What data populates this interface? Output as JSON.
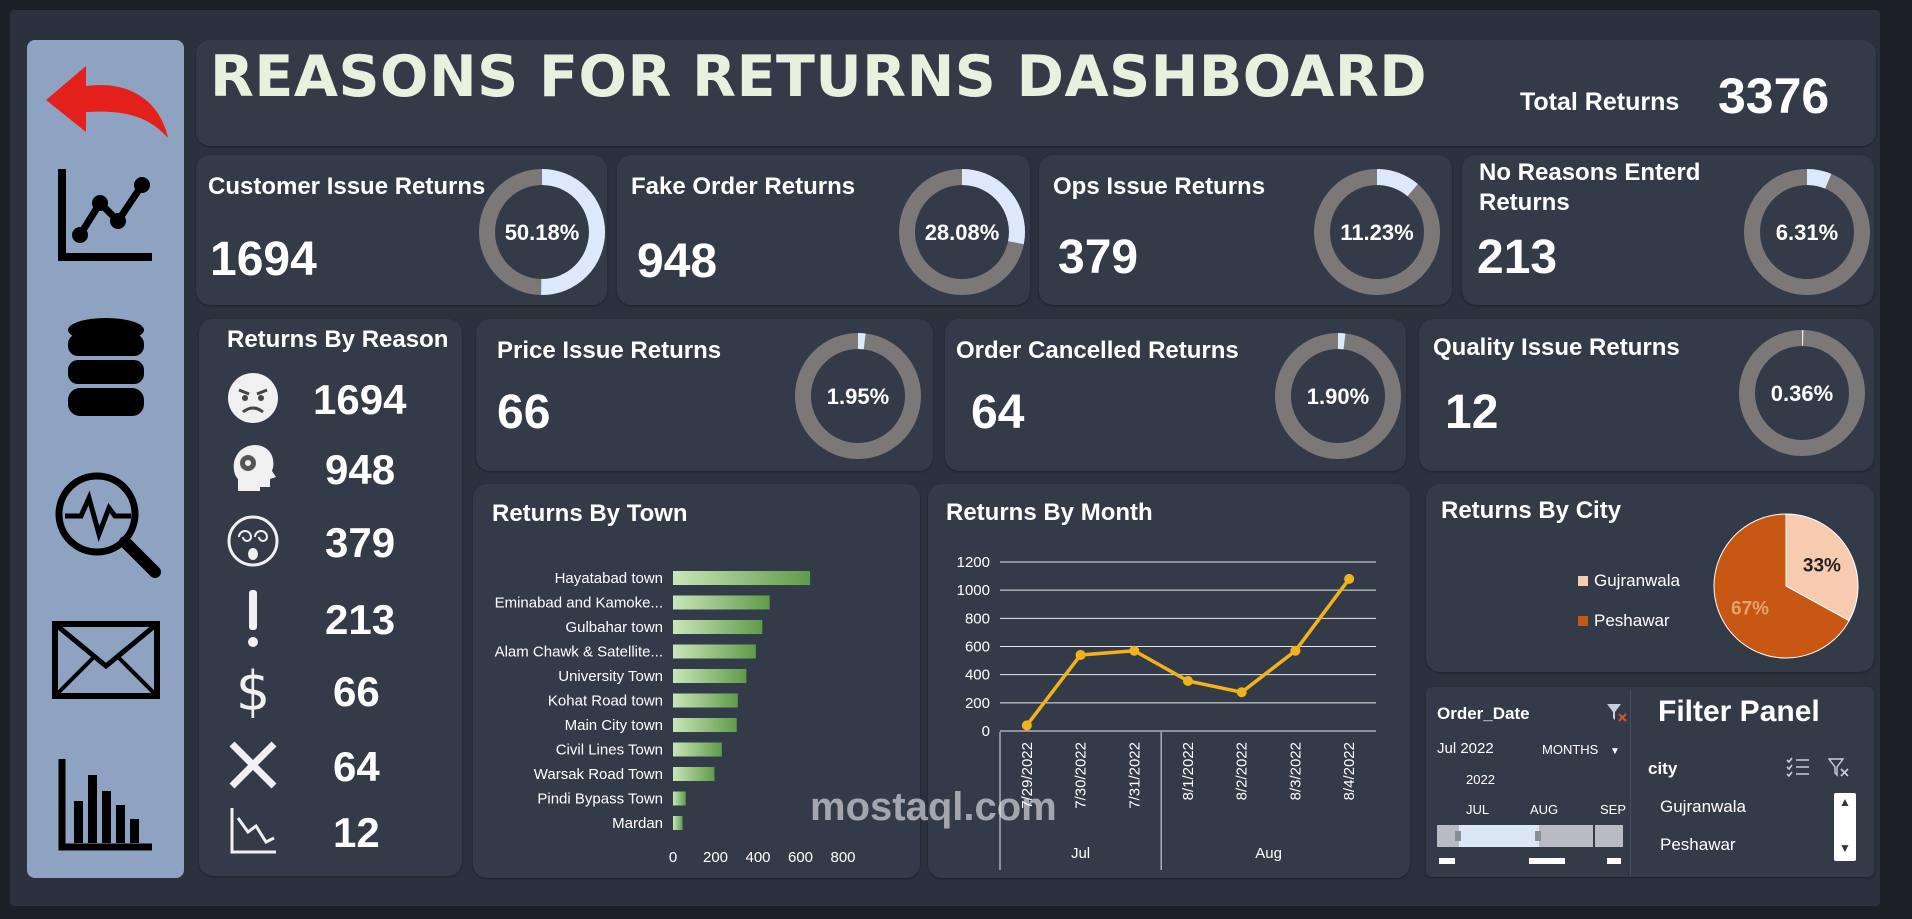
{
  "title": "REASONS FOR RETURNS DASHBOARD",
  "total": {
    "label": "Total Returns",
    "value": "3376"
  },
  "sidebar": {
    "icons": [
      "back-arrow-icon",
      "line-chart-icon",
      "database-icon",
      "analytics-search-icon",
      "mail-icon",
      "bar-chart-icon"
    ]
  },
  "kpis": [
    {
      "label": "Customer Issue Returns",
      "value": "1694",
      "pct_text": "50.18%",
      "pct": 50.18
    },
    {
      "label": "Fake Order Returns",
      "value": "948",
      "pct_text": "28.08%",
      "pct": 28.08
    },
    {
      "label": "Ops Issue Returns",
      "value": "379",
      "pct_text": "11.23%",
      "pct": 11.23
    },
    {
      "label": "No Reasons Enterd Returns",
      "value": "213",
      "pct_text": "6.31%",
      "pct": 6.31
    },
    {
      "label": "Price Issue Returns",
      "value": "66",
      "pct_text": "1.95%",
      "pct": 1.95
    },
    {
      "label": "Order Cancelled Returns",
      "value": "64",
      "pct_text": "1.90%",
      "pct": 1.9
    },
    {
      "label": "Quality Issue Returns",
      "value": "12",
      "pct_text": "0.36%",
      "pct": 0.36
    }
  ],
  "reasons": {
    "title": "Returns By Reason",
    "items": [
      {
        "icon": "angry-face-icon",
        "value": "1694"
      },
      {
        "icon": "head-profile-icon",
        "value": "948"
      },
      {
        "icon": "dizzy-face-icon",
        "value": "379"
      },
      {
        "icon": "exclamation-icon",
        "value": "213"
      },
      {
        "icon": "dollar-icon",
        "value": "66"
      },
      {
        "icon": "cross-icon",
        "value": "64"
      },
      {
        "icon": "decline-chart-icon",
        "value": "12"
      }
    ]
  },
  "colors": {
    "accent_line": "#f2b21c",
    "pie_a": "#f6cbb0",
    "pie_b": "#c95714",
    "bar": "#8fc47a",
    "donut_track": "#7d7878",
    "donut_fill": "#dde9fa"
  },
  "chart_data": [
    {
      "type": "bar",
      "title": "Returns By Town",
      "orientation": "horizontal",
      "categories": [
        "Hayatabad town",
        "Eminabad and Kamoke...",
        "Gulbahar town",
        "Alam Chawk & Satellite...",
        "University Town",
        "Kohat Road town",
        "Main City town",
        "Civil Lines Town",
        "Warsak Road Town",
        "Pindi Bypass Town",
        "Mardan"
      ],
      "values": [
        645,
        455,
        420,
        390,
        345,
        305,
        300,
        230,
        195,
        60,
        45
      ],
      "xlim": [
        0,
        800
      ],
      "xticks": [
        "0",
        "200",
        "400",
        "600",
        "800"
      ]
    },
    {
      "type": "line",
      "title": "Returns By Month",
      "x": [
        "7/29/2022",
        "7/30/2022",
        "7/31/2022",
        "8/1/2022",
        "8/2/2022",
        "8/3/2022",
        "8/4/2022"
      ],
      "values": [
        40,
        540,
        570,
        355,
        275,
        570,
        1080
      ],
      "ylim": [
        0,
        1200
      ],
      "yticks": [
        "0",
        "200",
        "400",
        "600",
        "800",
        "1000",
        "1200"
      ],
      "groups": [
        "Jul",
        "Aug"
      ]
    },
    {
      "type": "pie",
      "title": "Returns By City",
      "categories": [
        "Gujranwala",
        "Peshawar"
      ],
      "values": [
        33,
        67
      ],
      "labels": [
        "33%",
        "67%"
      ],
      "legend": "left"
    }
  ],
  "filter": {
    "title": "Filter Panel",
    "date_slicer": {
      "title": "Order_Date",
      "range": "Jul 2022",
      "level": "MONTHS",
      "year": "2022",
      "months": [
        "JUL",
        "AUG",
        "SEP"
      ]
    },
    "city_slicer": {
      "title": "city",
      "items": [
        "Gujranwala",
        "Peshawar"
      ]
    }
  },
  "watermark": "mostaql.com"
}
